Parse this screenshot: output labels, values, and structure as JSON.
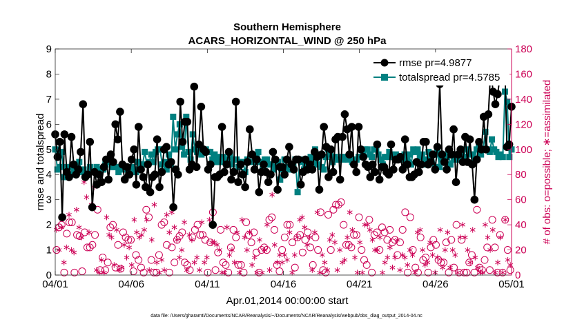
{
  "chart_data": {
    "type": "line",
    "title": "Southern Hemisphere",
    "subtitle": "ACARS_HORIZONTAL_WIND @ 250 hPa",
    "xlabel": "Apr.01,2014 00:00:00 start",
    "ylabel": "rmse and totalspread",
    "y2label": "# of obs: o=possible; ∗=assimilated",
    "x_ticks": [
      "04/01",
      "04/06",
      "04/11",
      "04/16",
      "04/21",
      "04/26",
      "05/01"
    ],
    "y_ticks": [
      "0",
      "1",
      "2",
      "3",
      "4",
      "5",
      "6",
      "7",
      "8",
      "9"
    ],
    "y2_ticks": [
      "0",
      "20",
      "40",
      "60",
      "80",
      "100",
      "120",
      "140",
      "160",
      "180"
    ],
    "xlim": [
      0,
      30
    ],
    "ylim": [
      0,
      9
    ],
    "y2lim": [
      0,
      180
    ],
    "legend_location": "top-right",
    "footnote": "data file: /Users/gharamti/Documents/NCAR/Reanalysis/~/Documents/NCAR/Reanalysis/webpub/obs_diag_output_2014-04.nc",
    "colors": {
      "rmse": "#000000",
      "spread": "#008080",
      "obs": "#cc0055"
    },
    "series": [
      {
        "name": "rmse",
        "legend": "rmse pr=4.9877",
        "values": [
          5.6,
          4.7,
          5.3,
          2.3,
          5.6,
          4.1,
          3.9,
          5.5,
          4.4,
          4.0,
          4.2,
          4.9,
          6.8,
          3.9,
          4.0,
          5.3,
          2.7,
          4.1,
          3.6,
          4.0,
          3.7,
          4.3,
          4.6,
          3.8,
          4.8,
          4.5,
          6.0,
          5.4,
          6.5,
          4.4,
          3.8,
          4.3,
          4.0,
          4.6,
          5.0,
          3.6,
          5.9,
          4.2,
          3.9,
          3.5,
          4.4,
          3.3,
          3.9,
          4.0,
          5.4,
          3.5,
          4.1,
          5.0,
          5.1,
          4.4,
          4.5,
          2.7,
          4.2,
          4.0,
          6.9,
          5.3,
          6.1,
          6.1,
          4.2,
          4.4,
          7.5,
          4.3,
          5.2,
          6.7,
          5.0,
          4.9,
          4.2,
          4.4,
          2.0,
          3.9,
          3.9,
          4.0,
          5.9,
          4.1,
          4.4,
          4.9,
          3.8,
          4.1,
          6.9,
          3.7,
          4.4,
          4.0,
          3.5,
          4.5,
          5.8,
          4.8,
          4.2,
          4.6,
          3.3,
          4.1,
          4.4,
          4.1,
          3.7,
          4.0,
          4.9,
          4.6,
          3.4,
          4.3,
          4.3,
          4.0,
          4.6,
          5.1,
          4.4,
          4.2,
          4.6,
          4.6,
          3.6,
          4.1,
          4.6,
          4.2,
          4.4,
          4.2,
          4.9,
          4.7,
          3.4,
          4.8,
          5.9,
          5.1,
          3.9,
          5.0,
          4.1,
          5.4,
          5.5,
          3.8,
          5.5,
          6.4,
          5.8,
          4.8,
          5.9,
          4.4,
          4.1,
          5.9,
          5.0,
          4.7,
          4.4,
          4.3,
          3.9,
          4.4,
          4.1,
          5.2,
          3.8,
          4.3,
          4.3,
          4.1,
          4.0,
          5.2,
          4.2,
          4.6,
          4.6,
          4.7,
          4.2,
          5.4,
          4.4,
          3.9,
          3.9,
          4.0,
          4.5,
          4.1,
          4.4,
          5.3,
          5.3,
          4.4,
          4.5,
          4.8,
          4.2,
          5.1,
          7.6,
          4.8,
          4.5,
          4.2,
          5.0,
          4.8,
          5.8,
          3.7,
          4.8,
          5.0,
          4.5,
          5.5,
          4.5,
          5.4,
          4.4,
          3.0,
          4.6,
          5.3,
          5.0,
          6.3,
          5.0,
          6.4,
          8.2,
          7.3,
          6.8,
          7.2,
          7.9,
          8.0,
          8.7,
          5.1,
          5.2,
          6.7
        ]
      },
      {
        "name": "totalspread",
        "legend": "totalspread pr=4.5785",
        "values": [
          5.0,
          4.2,
          4.3,
          4.9,
          3.9,
          4.3,
          4.0,
          4.3,
          4.0,
          4.2,
          4.3,
          4.5,
          4.1,
          4.2,
          4.0,
          4.0,
          4.3,
          4.1,
          4.1,
          4.3,
          4.0,
          4.2,
          4.2,
          4.4,
          4.5,
          4.5,
          4.3,
          4.3,
          4.3,
          4.1,
          4.2,
          4.3,
          4.3,
          4.2,
          4.3,
          4.3,
          4.2,
          4.1,
          4.5,
          4.4,
          4.4,
          4.9,
          4.4,
          4.5,
          4.8,
          4.5,
          4.9,
          5.0,
          5.0,
          4.4,
          4.5,
          4.2,
          4.8,
          4.4,
          6.3,
          5.0,
          5.6,
          6.0,
          5.1,
          4.8,
          6.3,
          4.9,
          4.6,
          5.6,
          5.0,
          4.9,
          5.0,
          4.8,
          4.9,
          5.0,
          4.9,
          4.9,
          4.6,
          4.8,
          4.5,
          4.7,
          4.5,
          4.7,
          4.6,
          4.4,
          4.8,
          4.4,
          4.6,
          4.6,
          4.3,
          4.5,
          4.5,
          4.1,
          4.6,
          4.5,
          4.5,
          4.5,
          4.7,
          4.9,
          4.5,
          4.2,
          4.6,
          4.6,
          4.4,
          4.4,
          4.2,
          4.3,
          4.5,
          3.8,
          4.2,
          4.6,
          4.3,
          4.2,
          4.3,
          4.2,
          4.6,
          3.3,
          4.6,
          4.5,
          4.2,
          4.5,
          4.3,
          4.7,
          4.5,
          5.0,
          4.4,
          4.8,
          4.3,
          4.2,
          4.7,
          5.0,
          4.8,
          4.5,
          4.7,
          4.6,
          4.6,
          4.7,
          4.6,
          4.7,
          4.6,
          4.8,
          4.5,
          4.6,
          4.6,
          4.7,
          4.7,
          4.9,
          5.0,
          5.0,
          4.8,
          4.7,
          5.0,
          5.0,
          4.8,
          4.6,
          4.4,
          4.7,
          4.7,
          4.9,
          4.8,
          4.7,
          4.8,
          4.6,
          4.6,
          4.7,
          4.8,
          4.6,
          4.8,
          4.4,
          5.0,
          4.9,
          5.0,
          4.7,
          4.8,
          4.6,
          4.4,
          4.9,
          4.7,
          4.8,
          4.3,
          4.9,
          4.3,
          4.6,
          4.7,
          4.7,
          4.9,
          4.4,
          4.8,
          4.6,
          4.6,
          4.7,
          4.6,
          5.0,
          4.7,
          5.0,
          4.8,
          4.8,
          4.6,
          5.0,
          5.2,
          4.8,
          5.0,
          5.7,
          5.0,
          4.9,
          5.4,
          5.0,
          4.9,
          4.7,
          4.8,
          4.7,
          7.3,
          6.9,
          4.7,
          5.0
        ]
      }
    ],
    "obs_possible": [
      20,
      38,
      40,
      2,
      33,
      42,
      42,
      2,
      32,
      31,
      3,
      34,
      22,
      22,
      24,
      32,
      52,
      4,
      14,
      4,
      10,
      38,
      40,
      6,
      24,
      5,
      34,
      30,
      28,
      28,
      3,
      16,
      12,
      6,
      2,
      52,
      46,
      12,
      2,
      2,
      16,
      40,
      42,
      24,
      2,
      22,
      10,
      28,
      31,
      34,
      10,
      8,
      4,
      30,
      36,
      40,
      32,
      32,
      28,
      2,
      26,
      50,
      4,
      18,
      36,
      10,
      8,
      2,
      22,
      36,
      30,
      8,
      8,
      2,
      42,
      32,
      26,
      34,
      18,
      2,
      20,
      22,
      20,
      44,
      46,
      36,
      8,
      3,
      20,
      30,
      40,
      40,
      26,
      6,
      30,
      32,
      18,
      28,
      34,
      22,
      8,
      30,
      20,
      50,
      4,
      2,
      48,
      20,
      52,
      56,
      56,
      58,
      40,
      24,
      24,
      22,
      32,
      32,
      46,
      20,
      12,
      8,
      44,
      2,
      32,
      34,
      20,
      38,
      34,
      28,
      36,
      26,
      28,
      16,
      26,
      36,
      50,
      2,
      46,
      20,
      6,
      2,
      30,
      12,
      14,
      2,
      22,
      28,
      24,
      12,
      10,
      10,
      26,
      2,
      28,
      6,
      40,
      2,
      28,
      2,
      2,
      10,
      16,
      2,
      52,
      6,
      4,
      12,
      22,
      4,
      44,
      22,
      2,
      32,
      2,
      44,
      20,
      4
    ],
    "obs_assimilated": [
      36,
      20,
      38,
      10,
      22,
      48,
      20,
      18,
      52,
      38,
      30,
      74,
      62,
      34,
      56,
      70,
      4,
      2,
      12,
      2,
      46,
      32,
      30,
      8,
      36,
      4,
      6,
      24,
      14,
      22,
      8,
      44,
      34,
      30,
      32,
      36,
      44,
      4,
      28,
      56,
      10,
      2,
      12,
      4,
      48,
      34,
      50,
      38,
      28,
      14,
      20,
      42,
      4,
      32,
      28,
      10,
      14,
      4,
      42,
      10,
      14,
      44,
      26,
      26,
      24,
      20,
      2,
      2,
      38,
      16,
      20,
      10,
      34,
      2,
      44,
      30,
      20,
      34,
      8,
      14,
      2,
      28,
      2,
      20,
      40,
      4,
      64,
      24,
      10,
      16,
      10,
      16,
      12,
      34,
      2,
      16,
      30,
      44,
      46,
      38,
      24,
      30,
      4,
      34,
      50,
      2,
      16,
      10,
      4,
      28,
      32,
      26,
      4,
      20,
      10,
      12,
      30,
      50,
      36,
      14,
      2,
      26,
      2,
      40,
      40,
      36,
      28,
      20,
      20,
      30,
      2,
      10,
      14,
      22,
      6,
      14,
      28,
      4,
      16,
      14,
      8,
      20,
      16,
      2,
      34,
      36,
      20,
      8,
      10,
      26,
      16,
      2,
      14,
      36,
      6,
      20,
      34,
      6,
      20,
      16,
      2,
      30,
      40,
      30,
      20,
      10,
      36,
      14,
      6,
      2,
      2,
      40,
      30,
      20,
      36,
      2,
      10,
      30,
      2,
      44,
      12,
      8
    ]
  }
}
